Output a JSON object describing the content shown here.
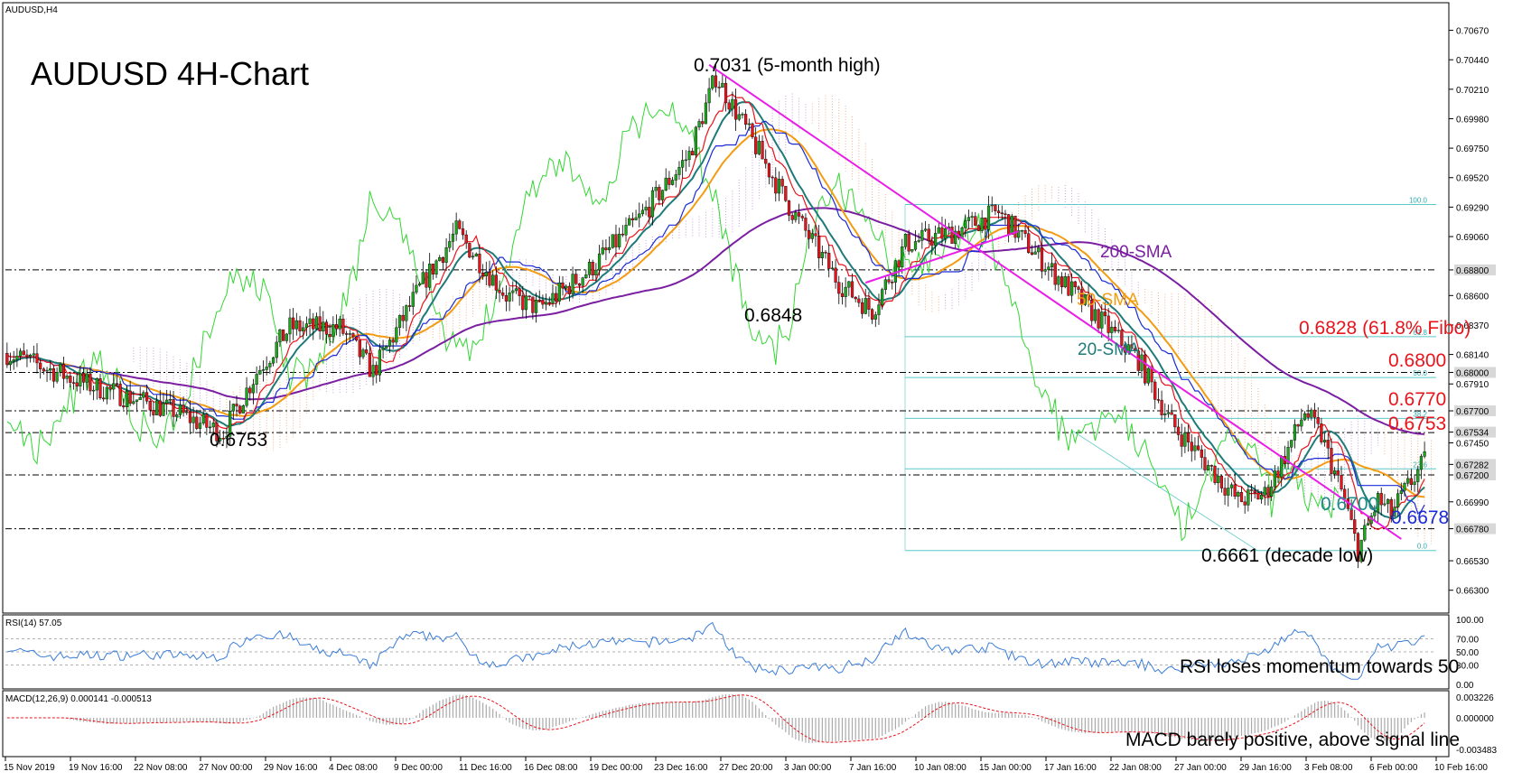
{
  "header": {
    "symbol": "AUDUSD,H4",
    "title": "AUDUSD 4H-Chart"
  },
  "colors": {
    "bull": "#1ea51e",
    "bear": "#e8141b",
    "sma200": "#7b1fa2",
    "sma50": "#f39c12",
    "sma20": "#1f7a7a",
    "tenkan": "#e8141b",
    "kijun": "#1a2bd6",
    "chikou": "#33d633",
    "trendline": "#e81ee8",
    "fib": "#5cc8c8",
    "rsi": "#3b7dd8",
    "macd_hist": "#aaaaaa",
    "macd_signal": "#e8141b"
  },
  "chart_data": [
    {
      "type": "candlestick",
      "title": "AUDUSD 4H-Chart",
      "ylim": [
        0.6615,
        0.7085
      ],
      "y_ticks": [
        "0.70670",
        "0.70440",
        "0.70210",
        "0.69980",
        "0.69750",
        "0.69520",
        "0.69290",
        "0.69060",
        "0.68800",
        "0.68600",
        "0.68370",
        "0.68140",
        "0.68000",
        "0.67910",
        "0.67700",
        "0.67534",
        "0.67450",
        "0.67282",
        "0.67200",
        "0.66990",
        "0.66780",
        "0.66530",
        "0.66300"
      ],
      "x_ticks": [
        "15 Nov 2019",
        "19 Nov 16:00",
        "22 Nov 08:00",
        "27 Nov 00:00",
        "29 Nov 16:00",
        "4 Dec 08:00",
        "9 Dec 00:00",
        "11 Dec 16:00",
        "16 Dec 08:00",
        "19 Dec 00:00",
        "23 Dec 16:00",
        "27 Dec 20:00",
        "3 Jan 00:00",
        "7 Jan 16:00",
        "10 Jan 08:00",
        "15 Jan 00:00",
        "17 Jan 16:00",
        "22 Jan 08:00",
        "27 Jan 00:00",
        "29 Jan 16:00",
        "3 Feb 08:00",
        "6 Feb 00:00",
        "10 Feb 16:00"
      ],
      "price_anchors": [
        [
          0,
          0.6815
        ],
        [
          25,
          0.679
        ],
        [
          50,
          0.677
        ],
        [
          60,
          0.6758
        ],
        [
          65,
          0.6753
        ],
        [
          75,
          0.68
        ],
        [
          85,
          0.6835
        ],
        [
          100,
          0.6835
        ],
        [
          110,
          0.68
        ],
        [
          125,
          0.687
        ],
        [
          135,
          0.691
        ],
        [
          150,
          0.686
        ],
        [
          160,
          0.685
        ],
        [
          175,
          0.688
        ],
        [
          190,
          0.692
        ],
        [
          205,
          0.697
        ],
        [
          213,
          0.7031
        ],
        [
          222,
          0.699
        ],
        [
          235,
          0.693
        ],
        [
          250,
          0.687
        ],
        [
          260,
          0.6848
        ],
        [
          270,
          0.69
        ],
        [
          285,
          0.691
        ],
        [
          298,
          0.6925
        ],
        [
          310,
          0.689
        ],
        [
          325,
          0.685
        ],
        [
          340,
          0.681
        ],
        [
          350,
          0.676
        ],
        [
          360,
          0.673
        ],
        [
          370,
          0.67
        ],
        [
          378,
          0.6705
        ],
        [
          385,
          0.674
        ],
        [
          390,
          0.677
        ],
        [
          395,
          0.675
        ],
        [
          402,
          0.67
        ],
        [
          406,
          0.6661
        ],
        [
          412,
          0.67
        ],
        [
          416,
          0.669
        ],
        [
          422,
          0.6715
        ],
        [
          426,
          0.673
        ]
      ],
      "labels": {
        "high": "0.7031 (5-month high)",
        "low1": "0.6753",
        "low2": "0.6848",
        "decade_low": "0.6661 (decade low)",
        "fibo_618": "0.6828 (61.8% Fibo)",
        "l6800": "0.6800",
        "l6770": "0.6770",
        "l6753": "0.6753",
        "l6700": "0.6700",
        "l6678": "0.6678",
        "sma200": "200-SMA",
        "sma50": "50-SMA",
        "sma20": "20-SMA"
      },
      "fib_small": [
        "100.0",
        "61.8",
        "50.0",
        "38.2",
        "23.6",
        "0.0"
      ],
      "h_lines": [
        0.688,
        0.68,
        0.677,
        0.6753,
        0.672,
        0.6678
      ],
      "price_badges": [
        "0.68800",
        "0.68000",
        "0.67700",
        "0.67534",
        "0.67282",
        "0.67200",
        "0.66780"
      ]
    },
    {
      "type": "line",
      "name": "RSI(14)",
      "header": "RSI(14) 57.05",
      "ylim": [
        0,
        100
      ],
      "y_ticks": [
        "100.00",
        "70.00",
        "50.00",
        "30.00",
        "0.00"
      ],
      "annotation": "RSI loses momentum towards 50"
    },
    {
      "type": "bar",
      "name": "MACD",
      "header": "MACD(12,26,9) 0.000141 -0.000513",
      "y_ticks": [
        "0.003226",
        "0.000000",
        "-0.003483"
      ],
      "annotation": "MACD barely positive, above signal line"
    }
  ]
}
